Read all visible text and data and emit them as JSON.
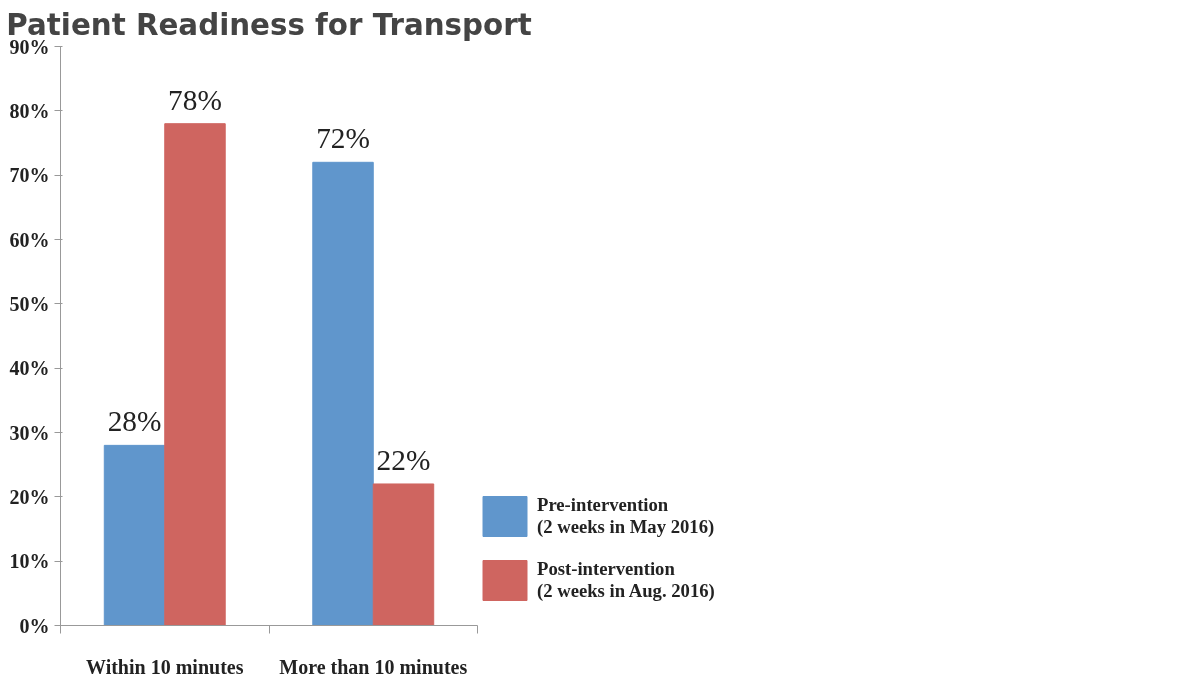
{
  "chart_data": {
    "type": "bar",
    "title": "Patient Readiness for Transport",
    "categories": [
      "Within 10 minutes",
      "More than 10 minutes"
    ],
    "series": [
      {
        "name": "Pre-intervention\n(2 weeks in May 2016)",
        "color": "#6096cc",
        "values": [
          28,
          72
        ]
      },
      {
        "name": "Post-intervention\n(2 weeks in Aug. 2016)",
        "color": "#cf6560",
        "values": [
          78,
          22
        ]
      }
    ],
    "value_labels": [
      [
        "28%",
        "72%"
      ],
      [
        "78%",
        "22%"
      ]
    ],
    "ylim": [
      0,
      90
    ],
    "yticks": [
      {
        "value": 0,
        "label": "0%"
      },
      {
        "value": 10,
        "label": "10%"
      },
      {
        "value": 20,
        "label": "20%"
      },
      {
        "value": 30,
        "label": "30%"
      },
      {
        "value": 40,
        "label": "40%"
      },
      {
        "value": 50,
        "label": "50%"
      },
      {
        "value": 60,
        "label": "60%"
      },
      {
        "value": 70,
        "label": "70%"
      },
      {
        "value": 80,
        "label": "80%"
      },
      {
        "value": 90,
        "label": "90%"
      }
    ],
    "grid": false,
    "legend": "right"
  }
}
